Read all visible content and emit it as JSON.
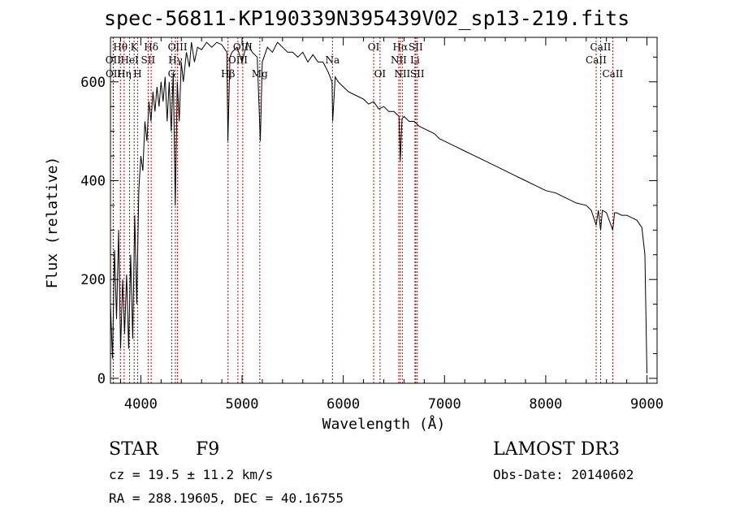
{
  "chart_data": {
    "type": "line",
    "title": "spec-56811-KP190339N395439V02_sp13-219.fits",
    "xlabel": "Wavelength (Å)",
    "ylabel": "Flux (relative)",
    "xlim": [
      3700,
      9100
    ],
    "ylim": [
      -10,
      690
    ],
    "x_ticks": [
      4000,
      5000,
      6000,
      7000,
      8000,
      9000
    ],
    "y_ticks": [
      0,
      200,
      400,
      600
    ],
    "series": [
      {
        "name": "spectrum",
        "x": [
          3700,
          3720,
          3740,
          3760,
          3780,
          3800,
          3820,
          3840,
          3860,
          3880,
          3900,
          3920,
          3940,
          3960,
          3980,
          4000,
          4020,
          4040,
          4060,
          4080,
          4100,
          4120,
          4140,
          4160,
          4180,
          4200,
          4220,
          4240,
          4260,
          4280,
          4300,
          4320,
          4340,
          4360,
          4380,
          4400,
          4420,
          4450,
          4480,
          4500,
          4530,
          4560,
          4600,
          4650,
          4700,
          4750,
          4800,
          4850,
          4860,
          4880,
          4900,
          4950,
          5000,
          5050,
          5100,
          5150,
          5180,
          5200,
          5250,
          5300,
          5350,
          5400,
          5450,
          5500,
          5550,
          5600,
          5650,
          5700,
          5750,
          5800,
          5850,
          5889,
          5895,
          5920,
          5950,
          6000,
          6050,
          6100,
          6150,
          6200,
          6250,
          6300,
          6350,
          6400,
          6450,
          6500,
          6550,
          6563,
          6580,
          6600,
          6650,
          6700,
          6750,
          6800,
          6850,
          6900,
          6950,
          7000,
          7100,
          7200,
          7300,
          7400,
          7500,
          7600,
          7700,
          7800,
          7900,
          8000,
          8100,
          8200,
          8300,
          8400,
          8450,
          8498,
          8520,
          8542,
          8560,
          8600,
          8662,
          8680,
          8700,
          8750,
          8800,
          8850,
          8900,
          8950,
          8980,
          9000
        ],
        "y": [
          150,
          40,
          260,
          120,
          300,
          60,
          200,
          90,
          210,
          60,
          250,
          80,
          330,
          150,
          380,
          450,
          420,
          520,
          480,
          560,
          520,
          580,
          540,
          590,
          550,
          600,
          560,
          610,
          520,
          600,
          500,
          620,
          350,
          600,
          520,
          640,
          600,
          660,
          630,
          680,
          640,
          670,
          665,
          680,
          670,
          680,
          675,
          660,
          480,
          650,
          660,
          670,
          640,
          680,
          660,
          650,
          480,
          640,
          670,
          660,
          680,
          670,
          660,
          660,
          650,
          660,
          640,
          655,
          640,
          640,
          620,
          600,
          520,
          610,
          600,
          590,
          580,
          575,
          570,
          565,
          555,
          560,
          545,
          550,
          540,
          540,
          530,
          440,
          525,
          530,
          520,
          520,
          510,
          505,
          500,
          495,
          485,
          480,
          470,
          460,
          450,
          440,
          430,
          420,
          410,
          400,
          390,
          380,
          375,
          365,
          355,
          350,
          340,
          310,
          340,
          300,
          340,
          335,
          300,
          335,
          335,
          330,
          330,
          325,
          320,
          305,
          250,
          10
        ]
      }
    ],
    "line_ids": [
      {
        "label": "Hθ",
        "wavelength": 3798,
        "row": 0
      },
      {
        "label": "OII",
        "wavelength": 3727,
        "row": 1
      },
      {
        "label": "OII",
        "wavelength": 3729,
        "row": 2
      },
      {
        "label": "Hη",
        "wavelength": 3835,
        "row": 2
      },
      {
        "label": "HeI",
        "wavelength": 3889,
        "row": 1
      },
      {
        "label": "K",
        "wavelength": 3934,
        "row": 0
      },
      {
        "label": "H",
        "wavelength": 3968,
        "row": 2
      },
      {
        "label": "SII",
        "wavelength": 4072,
        "row": 1
      },
      {
        "label": "Hδ",
        "wavelength": 4102,
        "row": 0
      },
      {
        "label": "OIII",
        "wavelength": 4363,
        "row": 0
      },
      {
        "label": "Hγ",
        "wavelength": 4341,
        "row": 1
      },
      {
        "label": "G",
        "wavelength": 4305,
        "row": 2
      },
      {
        "label": "OIII",
        "wavelength": 5007,
        "row": 0
      },
      {
        "label": "OIII",
        "wavelength": 4959,
        "row": 1
      },
      {
        "label": "Hβ",
        "wavelength": 4861,
        "row": 2
      },
      {
        "label": "Mg",
        "wavelength": 5175,
        "row": 2
      },
      {
        "label": "Na",
        "wavelength": 5893,
        "row": 1
      },
      {
        "label": "OI",
        "wavelength": 6300,
        "row": 0
      },
      {
        "label": "OI",
        "wavelength": 6363,
        "row": 2
      },
      {
        "label": "Hα",
        "wavelength": 6563,
        "row": 0
      },
      {
        "label": "NII",
        "wavelength": 6548,
        "row": 1
      },
      {
        "label": "NII",
        "wavelength": 6583,
        "row": 2
      },
      {
        "label": "SII",
        "wavelength": 6716,
        "row": 0
      },
      {
        "label": "Li",
        "wavelength": 6708,
        "row": 1
      },
      {
        "label": "SII",
        "wavelength": 6731,
        "row": 2
      },
      {
        "label": "CaII",
        "wavelength": 8542,
        "row": 0
      },
      {
        "label": "CaII",
        "wavelength": 8498,
        "row": 1
      },
      {
        "label": "CaII",
        "wavelength": 8662,
        "row": 2
      }
    ]
  },
  "info": {
    "class": "STAR",
    "subclass": "F9",
    "survey": "LAMOST DR3",
    "cz": "cz = 19.5 ± 11.2 km/s",
    "obs_date": "Obs-Date: 20140602",
    "coords": "RA = 288.19605, DEC =  40.16755"
  }
}
